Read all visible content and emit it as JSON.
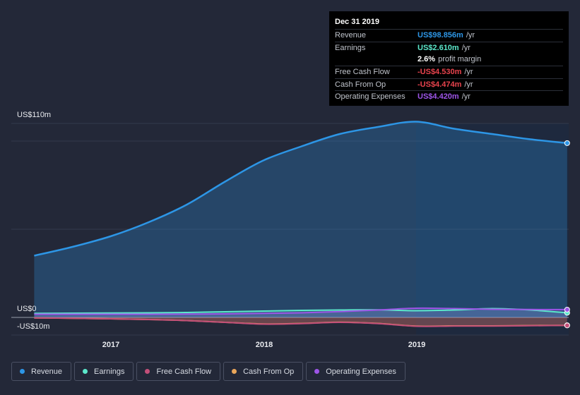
{
  "chart_data": {
    "type": "area",
    "y_top_label": "US$110m",
    "y_zero_label": "US$0",
    "y_bottom_label": "-US$10m",
    "ylim": [
      -10,
      110
    ],
    "x_ticks": [
      "2017",
      "2018",
      "2019"
    ],
    "series": [
      {
        "name": "Revenue",
        "color": "#2d96e6",
        "points": [
          [
            2016.5,
            35
          ],
          [
            2016.75,
            40
          ],
          [
            2017.0,
            46
          ],
          [
            2017.25,
            54
          ],
          [
            2017.5,
            64
          ],
          [
            2017.75,
            77
          ],
          [
            2018.0,
            89
          ],
          [
            2018.25,
            97
          ],
          [
            2018.5,
            104
          ],
          [
            2018.75,
            108
          ],
          [
            2019.0,
            111
          ],
          [
            2019.25,
            107
          ],
          [
            2019.5,
            104
          ],
          [
            2019.75,
            101
          ],
          [
            2019.99,
            98.856
          ]
        ]
      },
      {
        "name": "Earnings",
        "color": "#5ce8cb",
        "points": [
          [
            2016.5,
            2.3
          ],
          [
            2016.75,
            2.4
          ],
          [
            2017.0,
            2.5
          ],
          [
            2017.25,
            2.6
          ],
          [
            2017.5,
            2.8
          ],
          [
            2017.75,
            3.2
          ],
          [
            2018.0,
            3.6
          ],
          [
            2018.25,
            4.0
          ],
          [
            2018.5,
            4.2
          ],
          [
            2018.75,
            4.3
          ],
          [
            2019.0,
            3.8
          ],
          [
            2019.25,
            4.2
          ],
          [
            2019.5,
            5.0
          ],
          [
            2019.75,
            4.2
          ],
          [
            2019.99,
            2.61
          ]
        ]
      },
      {
        "name": "Free Cash Flow",
        "color": "#c34f79",
        "points": [
          [
            2016.5,
            -0.3
          ],
          [
            2016.75,
            -0.5
          ],
          [
            2017.0,
            -0.8
          ],
          [
            2017.25,
            -1.2
          ],
          [
            2017.5,
            -1.8
          ],
          [
            2017.75,
            -2.8
          ],
          [
            2018.0,
            -3.8
          ],
          [
            2018.25,
            -3.5
          ],
          [
            2018.5,
            -2.8
          ],
          [
            2018.75,
            -3.5
          ],
          [
            2019.0,
            -5.0
          ],
          [
            2019.25,
            -4.9
          ],
          [
            2019.5,
            -4.9
          ],
          [
            2019.75,
            -4.7
          ],
          [
            2019.99,
            -4.53
          ]
        ]
      },
      {
        "name": "Cash From Op",
        "color": "#eaa65a",
        "points": [
          [
            2016.5,
            -0.3
          ],
          [
            2016.75,
            -0.5
          ],
          [
            2017.0,
            -0.8
          ],
          [
            2017.25,
            -1.2
          ],
          [
            2017.5,
            -1.8
          ],
          [
            2017.75,
            -2.8
          ],
          [
            2018.0,
            -3.7
          ],
          [
            2018.25,
            -3.4
          ],
          [
            2018.5,
            -2.7
          ],
          [
            2018.75,
            -3.4
          ],
          [
            2019.0,
            -4.9
          ],
          [
            2019.25,
            -4.8
          ],
          [
            2019.5,
            -4.8
          ],
          [
            2019.75,
            -4.6
          ],
          [
            2019.99,
            -4.474
          ]
        ]
      },
      {
        "name": "Operating Expenses",
        "color": "#9d55e7",
        "points": [
          [
            2016.5,
            1.8
          ],
          [
            2016.75,
            1.8
          ],
          [
            2017.0,
            1.8
          ],
          [
            2017.25,
            1.8
          ],
          [
            2017.5,
            1.9
          ],
          [
            2017.75,
            2.0
          ],
          [
            2018.0,
            2.3
          ],
          [
            2018.25,
            2.6
          ],
          [
            2018.5,
            3.3
          ],
          [
            2018.75,
            4.2
          ],
          [
            2019.0,
            5.2
          ],
          [
            2019.25,
            5.0
          ],
          [
            2019.5,
            4.6
          ],
          [
            2019.75,
            4.5
          ],
          [
            2019.99,
            4.42
          ]
        ]
      }
    ]
  },
  "tooltip": {
    "date": "Dec 31 2019",
    "rows": [
      {
        "label": "Revenue",
        "value": "US$98.856m",
        "unit": "/yr",
        "color": "#2d96e6"
      },
      {
        "label": "Earnings",
        "value": "US$2.610m",
        "unit": "/yr",
        "color": "#5ce8cb"
      },
      {
        "label": "",
        "value": "2.6%",
        "unit": "profit margin",
        "color": "#ffffff"
      },
      {
        "label": "Free Cash Flow",
        "value": "-US$4.530m",
        "unit": "/yr",
        "color": "#e8434d"
      },
      {
        "label": "Cash From Op",
        "value": "-US$4.474m",
        "unit": "/yr",
        "color": "#e8434d"
      },
      {
        "label": "Operating Expenses",
        "value": "US$4.420m",
        "unit": "/yr",
        "color": "#9d55e7"
      }
    ]
  },
  "legend": [
    {
      "label": "Revenue",
      "color": "#2d96e6"
    },
    {
      "label": "Earnings",
      "color": "#5ce8cb"
    },
    {
      "label": "Free Cash Flow",
      "color": "#c34f79"
    },
    {
      "label": "Cash From Op",
      "color": "#eaa65a"
    },
    {
      "label": "Operating Expenses",
      "color": "#9d55e7"
    }
  ]
}
